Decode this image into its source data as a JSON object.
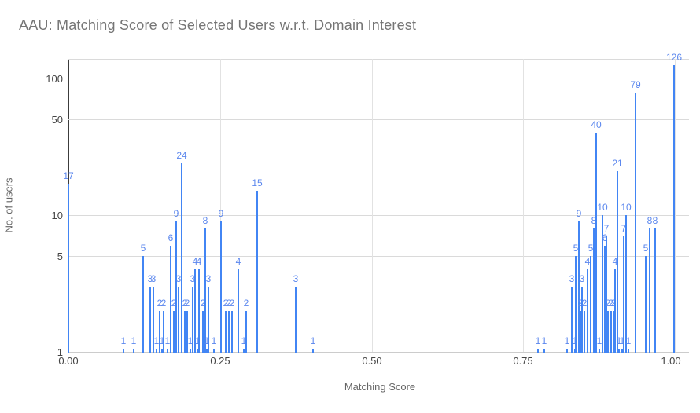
{
  "title": "AAU: Matching Score of Selected Users w.r.t. Domain Interest",
  "colors": {
    "bar": "#4285f4",
    "data_label": "#5b87ee",
    "title_text": "#757575",
    "axis_line": "#3c3c3c",
    "gridline": "#dadada",
    "tick_text": "#444444",
    "axis_title_text": "#666666"
  },
  "chart_data": {
    "type": "bar",
    "title": "AAU: Matching Score of Selected Users w.r.t. Domain Interest",
    "xlabel": "Matching Score",
    "ylabel": "No. of users",
    "x_scale": "linear",
    "y_scale": "log",
    "xlim": [
      0.0,
      1.0
    ],
    "ylim": [
      1,
      130
    ],
    "grid": true,
    "legend": "none",
    "x_ticks": [
      {
        "value": 0.0,
        "label": "0.00"
      },
      {
        "value": 0.25,
        "label": "0.25"
      },
      {
        "value": 0.5,
        "label": "0.50"
      },
      {
        "value": 0.75,
        "label": "0.75"
      },
      {
        "value": 1.0,
        "label": "1.00"
      }
    ],
    "y_ticks": [
      {
        "value": 1,
        "label": "1"
      },
      {
        "value": 5,
        "label": "5"
      },
      {
        "value": 10,
        "label": "10"
      },
      {
        "value": 50,
        "label": "50"
      },
      {
        "value": 100,
        "label": "100"
      }
    ],
    "bars": [
      {
        "score": 0.0,
        "count": 17
      },
      {
        "score": 0.091,
        "count": 1
      },
      {
        "score": 0.108,
        "count": 1
      },
      {
        "score": 0.123,
        "count": 5
      },
      {
        "score": 0.135,
        "count": 3
      },
      {
        "score": 0.14,
        "count": 3
      },
      {
        "score": 0.145,
        "count": 1
      },
      {
        "score": 0.15,
        "count": 2
      },
      {
        "score": 0.154,
        "count": 1
      },
      {
        "score": 0.157,
        "count": 2
      },
      {
        "score": 0.163,
        "count": 1
      },
      {
        "score": 0.169,
        "count": 6
      },
      {
        "score": 0.174,
        "count": 2
      },
      {
        "score": 0.178,
        "count": 9
      },
      {
        "score": 0.182,
        "count": 3
      },
      {
        "score": 0.187,
        "count": 24
      },
      {
        "score": 0.192,
        "count": 2
      },
      {
        "score": 0.196,
        "count": 2
      },
      {
        "score": 0.201,
        "count": 1
      },
      {
        "score": 0.205,
        "count": 3
      },
      {
        "score": 0.209,
        "count": 4
      },
      {
        "score": 0.213,
        "count": 1
      },
      {
        "score": 0.215,
        "count": 4
      },
      {
        "score": 0.222,
        "count": 2
      },
      {
        "score": 0.226,
        "count": 8
      },
      {
        "score": 0.228,
        "count": 1
      },
      {
        "score": 0.231,
        "count": 3
      },
      {
        "score": 0.24,
        "count": 1
      },
      {
        "score": 0.252,
        "count": 9
      },
      {
        "score": 0.259,
        "count": 2
      },
      {
        "score": 0.264,
        "count": 2
      },
      {
        "score": 0.27,
        "count": 2
      },
      {
        "score": 0.28,
        "count": 4
      },
      {
        "score": 0.289,
        "count": 1
      },
      {
        "score": 0.293,
        "count": 2
      },
      {
        "score": 0.311,
        "count": 15
      },
      {
        "score": 0.375,
        "count": 3
      },
      {
        "score": 0.403,
        "count": 1
      },
      {
        "score": 0.774,
        "count": 1
      },
      {
        "score": 0.785,
        "count": 1
      },
      {
        "score": 0.822,
        "count": 1
      },
      {
        "score": 0.83,
        "count": 3
      },
      {
        "score": 0.835,
        "count": 1
      },
      {
        "score": 0.837,
        "count": 5
      },
      {
        "score": 0.842,
        "count": 9
      },
      {
        "score": 0.845,
        "count": 2
      },
      {
        "score": 0.847,
        "count": 3
      },
      {
        "score": 0.851,
        "count": 2
      },
      {
        "score": 0.856,
        "count": 4
      },
      {
        "score": 0.861,
        "count": 5
      },
      {
        "score": 0.866,
        "count": 8
      },
      {
        "score": 0.87,
        "count": 40
      },
      {
        "score": 0.875,
        "count": 1
      },
      {
        "score": 0.881,
        "count": 10
      },
      {
        "score": 0.884,
        "count": 6
      },
      {
        "score": 0.887,
        "count": 7
      },
      {
        "score": 0.89,
        "count": 2
      },
      {
        "score": 0.895,
        "count": 2
      },
      {
        "score": 0.899,
        "count": 2
      },
      {
        "score": 0.901,
        "count": 4
      },
      {
        "score": 0.905,
        "count": 21
      },
      {
        "score": 0.908,
        "count": 1
      },
      {
        "score": 0.913,
        "count": 1
      },
      {
        "score": 0.916,
        "count": 7
      },
      {
        "score": 0.92,
        "count": 10
      },
      {
        "score": 0.923,
        "count": 1
      },
      {
        "score": 0.935,
        "count": 79
      },
      {
        "score": 0.952,
        "count": 5
      },
      {
        "score": 0.958,
        "count": 8
      },
      {
        "score": 0.968,
        "count": 8
      },
      {
        "score": 0.999,
        "count": 126
      }
    ]
  }
}
